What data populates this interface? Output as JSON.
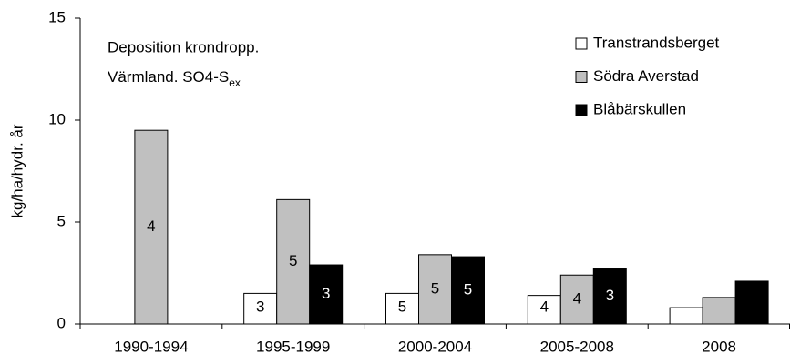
{
  "chart_data": {
    "type": "bar",
    "title_lines": [
      "Deposition krondropp.",
      "Värmland. SO4-S"
    ],
    "title_subscript": "ex",
    "y_label": "kg/ha/hydr. år",
    "categories": [
      "1990-1994",
      "1995-1999",
      "2000-2004",
      "2005-2008",
      "2008"
    ],
    "series": [
      {
        "name": "Transtrandsberget",
        "color": "#ffffff",
        "values": [
          null,
          1.5,
          1.5,
          1.4,
          0.8
        ],
        "n": [
          null,
          3,
          5,
          4,
          null
        ]
      },
      {
        "name": "Södra Averstad",
        "color": "#c0c0c0",
        "values": [
          9.5,
          6.1,
          3.4,
          2.4,
          1.3
        ],
        "n": [
          4,
          5,
          5,
          4,
          null
        ]
      },
      {
        "name": "Blåbärskullen",
        "color": "#000000",
        "values": [
          null,
          2.9,
          3.3,
          2.7,
          2.1
        ],
        "n": [
          null,
          3,
          5,
          3,
          null
        ]
      }
    ],
    "ylim": [
      0,
      15
    ],
    "yticks": [
      0,
      5,
      10,
      15
    ],
    "grid": false,
    "legend": "top-right"
  }
}
